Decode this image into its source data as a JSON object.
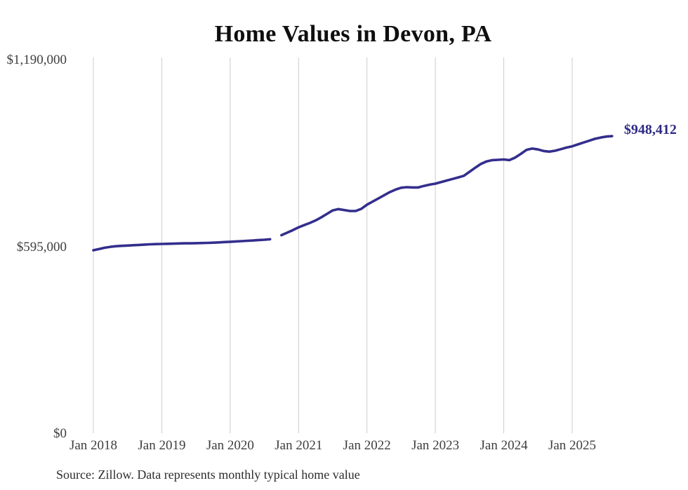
{
  "chart": {
    "title": "Home Values in Devon, PA",
    "end_label": "$948,412"
  },
  "source": {
    "text": "Source: Zillow. Data represents monthly typical home value"
  },
  "colors": {
    "line": "#332e8c",
    "end_label": "#2e2a86",
    "grid": "#cccccc",
    "axis_text": "#3e3e3e",
    "title_text": "#0f0f0f",
    "background": "#ffffff"
  },
  "chart_data": {
    "type": "line",
    "title": "Home Values in Devon, PA",
    "series_name": "Monthly typical home value",
    "unit": "USD",
    "x_tick_labels": [
      "Jan 2018",
      "Jan 2019",
      "Jan 2020",
      "Jan 2021",
      "Jan 2022",
      "Jan 2023",
      "Jan 2024",
      "Jan 2025"
    ],
    "y_ticks": [
      {
        "label": "$0",
        "value": 0
      },
      {
        "label": "$595,000",
        "value": 595000
      },
      {
        "label": "$1,190,000",
        "value": 1190000
      }
    ],
    "ylim": [
      0,
      1190000
    ],
    "grid": "vertical-only",
    "legend": "none",
    "gap_months": [
      "2020-09"
    ],
    "end_value": 948412,
    "months": [
      "2018-01",
      "2018-02",
      "2018-03",
      "2018-04",
      "2018-05",
      "2018-06",
      "2018-07",
      "2018-08",
      "2018-09",
      "2018-10",
      "2018-11",
      "2018-12",
      "2019-01",
      "2019-02",
      "2019-03",
      "2019-04",
      "2019-05",
      "2019-06",
      "2019-07",
      "2019-08",
      "2019-09",
      "2019-10",
      "2019-11",
      "2019-12",
      "2020-01",
      "2020-02",
      "2020-03",
      "2020-04",
      "2020-05",
      "2020-06",
      "2020-07",
      "2020-08",
      "2020-09",
      "2020-10",
      "2020-11",
      "2020-12",
      "2021-01",
      "2021-02",
      "2021-03",
      "2021-04",
      "2021-05",
      "2021-06",
      "2021-07",
      "2021-08",
      "2021-09",
      "2021-10",
      "2021-11",
      "2021-12",
      "2022-01",
      "2022-02",
      "2022-03",
      "2022-04",
      "2022-05",
      "2022-06",
      "2022-07",
      "2022-08",
      "2022-09",
      "2022-10",
      "2022-11",
      "2022-12",
      "2023-01",
      "2023-02",
      "2023-03",
      "2023-04",
      "2023-05",
      "2023-06",
      "2023-07",
      "2023-08",
      "2023-09",
      "2023-10",
      "2023-11",
      "2023-12",
      "2024-01",
      "2024-02",
      "2024-03",
      "2024-04",
      "2024-05",
      "2024-06",
      "2024-07",
      "2024-08",
      "2024-09",
      "2024-10",
      "2024-11",
      "2024-12",
      "2025-01",
      "2025-02",
      "2025-03",
      "2025-04",
      "2025-05",
      "2025-06",
      "2025-07",
      "2025-08"
    ],
    "values": [
      585000,
      589000,
      593000,
      596000,
      598000,
      599000,
      600000,
      601000,
      602000,
      603000,
      604000,
      604500,
      605000,
      605500,
      606000,
      606500,
      607000,
      607000,
      607500,
      608000,
      608500,
      609000,
      610000,
      611000,
      612000,
      613000,
      614000,
      615000,
      616000,
      617500,
      618500,
      620000,
      null,
      633000,
      641000,
      649000,
      658000,
      665000,
      672000,
      680000,
      690000,
      701000,
      712000,
      716000,
      713000,
      710000,
      710000,
      717000,
      730000,
      740000,
      750000,
      760000,
      770000,
      778000,
      784000,
      786000,
      785000,
      785000,
      790000,
      794000,
      797000,
      802000,
      807000,
      812000,
      817000,
      822000,
      835000,
      848000,
      860000,
      868000,
      872000,
      873000,
      874000,
      872000,
      880000,
      892000,
      905000,
      909000,
      906000,
      901000,
      899000,
      902000,
      907000,
      912000,
      916000,
      922000,
      928000,
      934000,
      940000,
      944000,
      947000,
      948412
    ]
  }
}
